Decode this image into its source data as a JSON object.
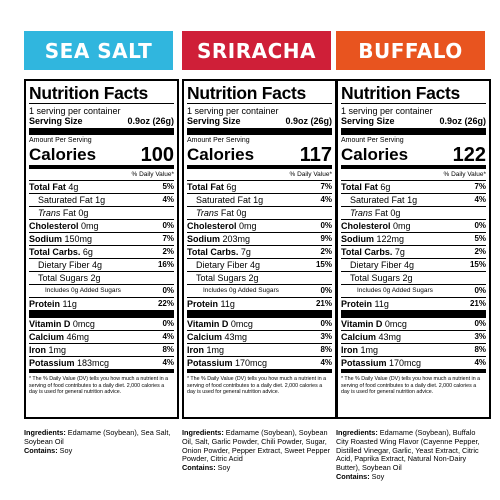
{
  "colors": {
    "sea_salt": "#30b6de",
    "sriracha": "#cf1f38",
    "buffalo": "#e8541f"
  },
  "labels": [
    {
      "flavor": "SEA SALT",
      "title": "Nutrition Facts",
      "servings": "1 serving per container",
      "serving_size_label": "Serving Size",
      "serving_size": "0.9oz (26g)",
      "amount_per_serving": "Amount Per Serving",
      "calories_label": "Calories",
      "calories": "100",
      "dv_header": "% Daily Value*",
      "rows": [
        {
          "label": "Total Fat",
          "amount": "4g",
          "dv": "5%"
        },
        {
          "label": "Saturated Fat",
          "amount": "1g",
          "dv": "4%"
        },
        {
          "label": "Trans",
          "label2": "Fat",
          "amount": "0g",
          "dv": ""
        },
        {
          "label": "Cholesterol",
          "amount": "0mg",
          "dv": "0%"
        },
        {
          "label": "Sodium",
          "amount": "150mg",
          "dv": "7%"
        },
        {
          "label": "Total Carbs.",
          "amount": "6g",
          "dv": "2%"
        },
        {
          "label": "Dietary Fiber",
          "amount": "4g",
          "dv": "16%"
        },
        {
          "label": "Total Sugars",
          "amount": "2g",
          "dv": ""
        },
        {
          "label": "Includes 0g Added Sugars",
          "amount": "",
          "dv": "0%"
        },
        {
          "label": "Protein",
          "amount": "11g",
          "dv": "22%"
        },
        {
          "label": "Vitamin D",
          "amount": "0mcg",
          "dv": "0%"
        },
        {
          "label": "Calcium",
          "amount": "46mg",
          "dv": "4%"
        },
        {
          "label": "Iron",
          "amount": "1mg",
          "dv": "8%"
        },
        {
          "label": "Potassium",
          "amount": "183mcg",
          "dv": "4%"
        }
      ],
      "footnote": "* The % Daily Value (DV) tells you how much a nutrient in a serving of food contributes to a daily diet. 2,000 calories a day is used for general nutrition advice.",
      "ingredients_label": "Ingredients:",
      "ingredients": " Edamame (Soybean), Sea Salt, Soybean Oil",
      "contains_label": "Contains:",
      "contains": " Soy"
    },
    {
      "flavor": "SRIRACHA",
      "title": "Nutrition Facts",
      "servings": "1 serving per container",
      "serving_size_label": "Serving Size",
      "serving_size": "0.9oz (26g)",
      "amount_per_serving": "Amount Per Serving",
      "calories_label": "Calories",
      "calories": "117",
      "dv_header": "% Daily Value*",
      "rows": [
        {
          "label": "Total Fat",
          "amount": "6g",
          "dv": "7%"
        },
        {
          "label": "Saturated Fat",
          "amount": "1g",
          "dv": "4%"
        },
        {
          "label": "Trans",
          "label2": "Fat",
          "amount": "0g",
          "dv": ""
        },
        {
          "label": "Cholesterol",
          "amount": "0mg",
          "dv": "0%"
        },
        {
          "label": "Sodium",
          "amount": "203mg",
          "dv": "9%"
        },
        {
          "label": "Total Carbs.",
          "amount": "7g",
          "dv": "2%"
        },
        {
          "label": "Dietary Fiber",
          "amount": "4g",
          "dv": "15%"
        },
        {
          "label": "Total Sugars",
          "amount": "2g",
          "dv": ""
        },
        {
          "label": "Includes 0g Added Sugars",
          "amount": "",
          "dv": "0%"
        },
        {
          "label": "Protein",
          "amount": "11g",
          "dv": "21%"
        },
        {
          "label": "Vitamin D",
          "amount": "0mcg",
          "dv": "0%"
        },
        {
          "label": "Calcium",
          "amount": "43mg",
          "dv": "3%"
        },
        {
          "label": "Iron",
          "amount": "1mg",
          "dv": "8%"
        },
        {
          "label": "Potassium",
          "amount": "170mcg",
          "dv": "4%"
        }
      ],
      "footnote": "* The % Daily Value (DV) tells you how much a nutrient in a serving of food contributes to a daily diet. 2,000 calories a day is used for general nutrition advice.",
      "ingredients_label": "Ingredients:",
      "ingredients": " Edamame (Soybean), Soybean Oil, Salt, Garlic Powder, Chili Powder, Sugar, Onion Powder, Pepper Extract, Sweet Pepper Powder, Citric Acid",
      "contains_label": "Contains:",
      "contains": " Soy"
    },
    {
      "flavor": "BUFFALO",
      "title": "Nutrition Facts",
      "servings": "1 serving per container",
      "serving_size_label": "Serving Size",
      "serving_size": "0.9oz (26g)",
      "amount_per_serving": "Amount Per Serving",
      "calories_label": "Calories",
      "calories": "122",
      "dv_header": "% Daily Value*",
      "rows": [
        {
          "label": "Total Fat",
          "amount": "6g",
          "dv": "7%"
        },
        {
          "label": "Saturated Fat",
          "amount": "1g",
          "dv": "4%"
        },
        {
          "label": "Trans",
          "label2": "Fat",
          "amount": "0g",
          "dv": ""
        },
        {
          "label": "Cholesterol",
          "amount": "0mg",
          "dv": "0%"
        },
        {
          "label": "Sodium",
          "amount": "122mg",
          "dv": "5%"
        },
        {
          "label": "Total Carbs.",
          "amount": "7g",
          "dv": "2%"
        },
        {
          "label": "Dietary Fiber",
          "amount": "4g",
          "dv": "15%"
        },
        {
          "label": "Total Sugars",
          "amount": "2g",
          "dv": ""
        },
        {
          "label": "Includes 0g Added Sugars",
          "amount": "",
          "dv": "0%"
        },
        {
          "label": "Protein",
          "amount": "11g",
          "dv": "21%"
        },
        {
          "label": "Vitamin D",
          "amount": "0mcg",
          "dv": "0%"
        },
        {
          "label": "Calcium",
          "amount": "43mg",
          "dv": "3%"
        },
        {
          "label": "Iron",
          "amount": "1mg",
          "dv": "8%"
        },
        {
          "label": "Potassium",
          "amount": "170mcg",
          "dv": "4%"
        }
      ],
      "footnote": "* The % Daily Value (DV) tells you how much a nutrient in a serving of food contributes to a daily diet. 2,000 calories a day is used for general nutrition advice.",
      "ingredients_label": "Ingredients:",
      "ingredients": " Edamame (Soybean), Buffalo City Roasted Wing Flavor (Cayenne Pepper, Distilled Vinegar, Garlic, Yeast Extract, Citric Acid, Paprika Extract, Natural Non-Dairy Butter), Soybean Oil",
      "contains_label": "Contains:",
      "contains": " Soy"
    }
  ]
}
